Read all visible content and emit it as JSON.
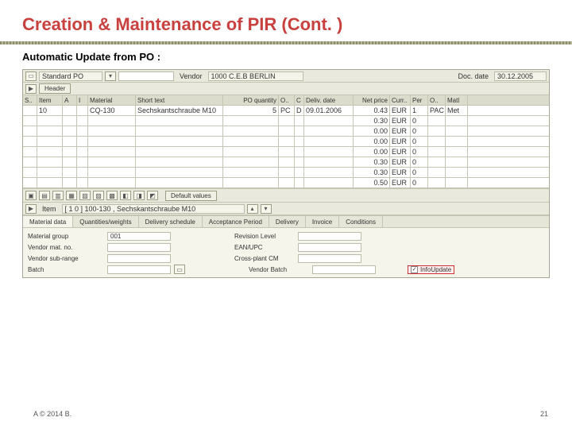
{
  "slide": {
    "title": "Creation & Maintenance of PIR (Cont. )",
    "subtitle": "Automatic Update from PO :",
    "copyright": "A © 2014 B.",
    "page": "21"
  },
  "header": {
    "doctype_label": "Standard PO",
    "vendor_label": "Vendor",
    "vendor_value": "1000 C.E.B BERLIN",
    "docdate_label": "Doc. date",
    "docdate_value": "30.12.2005",
    "header_btn": "Header"
  },
  "grid": {
    "cols": [
      "S..",
      "Item",
      "A",
      "I",
      "Material",
      "Short text",
      "PO quantity",
      "O..",
      "C",
      "Deliv. date",
      "Net price",
      "Curr..",
      "Per",
      "O..",
      "Matl"
    ],
    "rows": [
      {
        "itm": "10",
        "mat": "CQ-130",
        "txt": "Sechskantschraube M10",
        "qty": "5",
        "o": "PC",
        "c": "D",
        "dd": "09.01.2006",
        "np": "0.43",
        "cur": "EUR",
        "per": "1",
        "u": "PAC",
        "mg": "Met"
      },
      {
        "np": "0.30",
        "cur": "EUR",
        "per": "0"
      },
      {
        "np": "0.00",
        "cur": "EUR",
        "per": "0"
      },
      {
        "np": "0.00",
        "cur": "EUR",
        "per": "0"
      },
      {
        "np": "0.00",
        "cur": "EUR",
        "per": "0"
      },
      {
        "np": "0.30",
        "cur": "EUR",
        "per": "0"
      },
      {
        "np": "0.30",
        "cur": "EUR",
        "per": "0"
      },
      {
        "np": "0.50",
        "cur": "EUR",
        "per": "0"
      }
    ]
  },
  "mid": {
    "default_values": "Default values",
    "item_label": "Item",
    "item_value": "[ 1 0 ] 100-130 , Sechskantschraube M10"
  },
  "tabs": [
    "Material data",
    "Quantities/weights",
    "Delivery schedule",
    "Acceptance Period",
    "Delivery",
    "Invoice",
    "Conditions"
  ],
  "form": {
    "rows": [
      {
        "l": "Material group",
        "v": "001",
        "l2": "Revision Level"
      },
      {
        "l": "Vendor mat. no.",
        "l2": "EAN/UPC"
      },
      {
        "l": "Vendor sub-range",
        "l2": "Cross-plant CM"
      },
      {
        "l": "Batch",
        "l2": "Vendor Batch"
      }
    ],
    "infoupdate_label": "InfoUpdate"
  }
}
